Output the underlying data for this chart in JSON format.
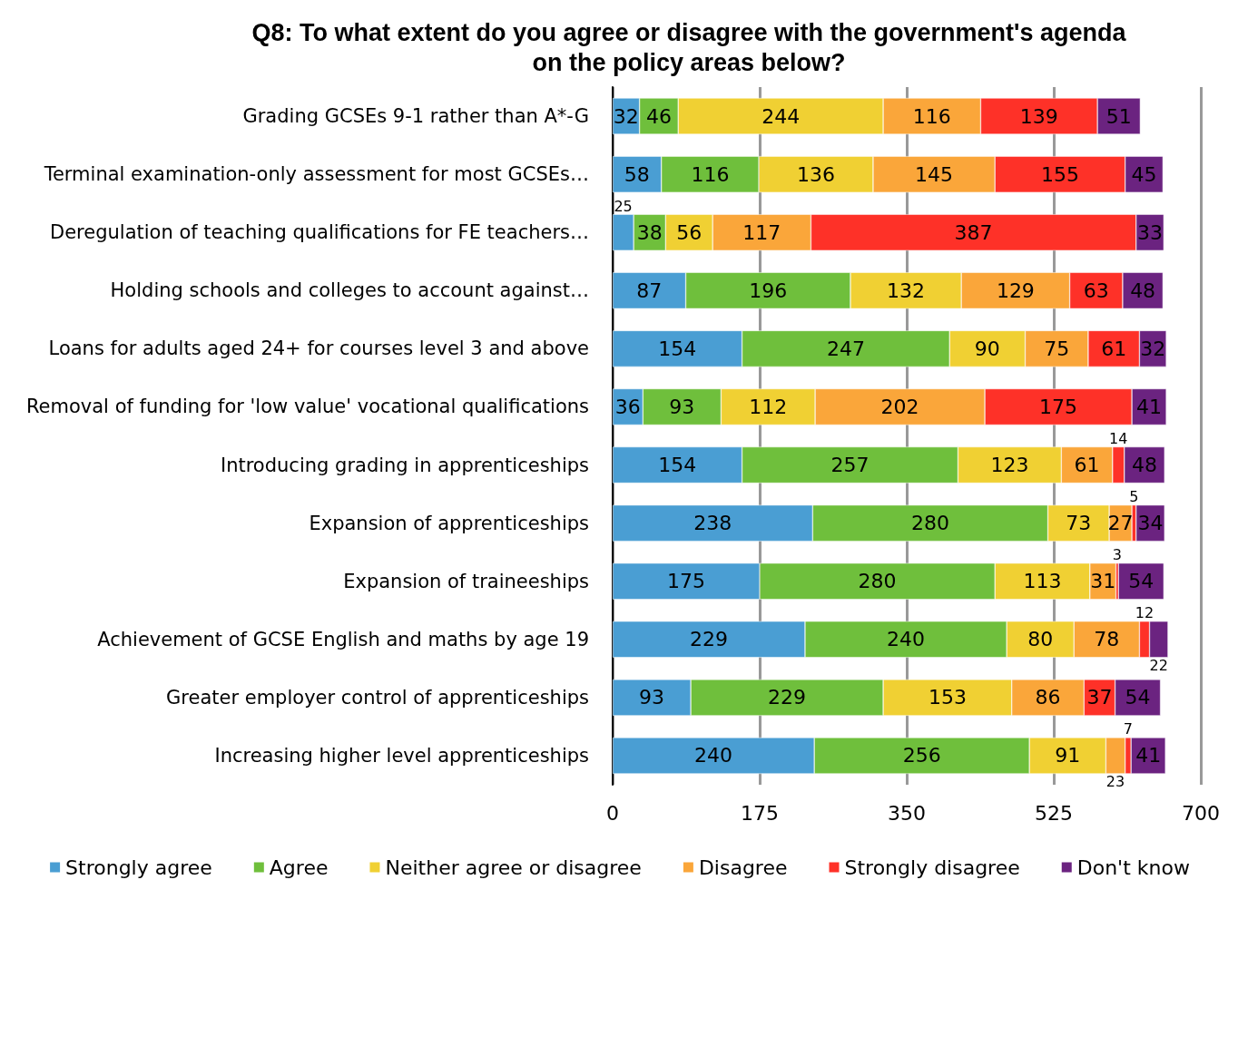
{
  "chart_data": {
    "type": "bar",
    "orientation": "horizontal",
    "stacked": true,
    "title": "Q8: To what extent do you agree or disagree with the government's agenda\non the policy areas below?",
    "categories": [
      "Grading GCSEs 9-1 rather than A*-G",
      "Terminal examination-only assessment for most GCSEs…",
      "Deregulation of teaching qualifications for FE teachers…",
      "Holding schools and colleges to account against…",
      "Loans for adults aged 24+ for courses level 3 and above",
      "Removal of funding for 'low value' vocational qualifications",
      "Introducing grading in apprenticeships",
      "Expansion of apprenticeships",
      "Expansion of traineeships",
      "Achievement of GCSE English and maths by age 19",
      "Greater employer control of apprenticeships",
      "Increasing higher level apprenticeships"
    ],
    "series": [
      {
        "name": "Strongly agree",
        "color": "#4a9ed3",
        "values": [
          32,
          58,
          25,
          87,
          154,
          36,
          154,
          238,
          175,
          229,
          93,
          240
        ]
      },
      {
        "name": "Agree",
        "color": "#6fbf3c",
        "values": [
          46,
          116,
          38,
          196,
          247,
          93,
          257,
          280,
          280,
          240,
          229,
          256
        ]
      },
      {
        "name": "Neither agree or disagree",
        "color": "#f0d033",
        "values": [
          244,
          136,
          56,
          132,
          90,
          112,
          123,
          73,
          113,
          80,
          153,
          91
        ]
      },
      {
        "name": "Disagree",
        "color": "#faa63a",
        "values": [
          116,
          145,
          117,
          129,
          75,
          202,
          61,
          27,
          31,
          78,
          86,
          23
        ]
      },
      {
        "name": "Strongly disagree",
        "color": "#fe3128",
        "values": [
          139,
          155,
          387,
          63,
          61,
          175,
          14,
          5,
          3,
          12,
          37,
          7
        ]
      },
      {
        "name": "Don't know",
        "color": "#6b2380",
        "values": [
          51,
          45,
          33,
          48,
          32,
          41,
          48,
          34,
          54,
          22,
          54,
          41
        ]
      }
    ],
    "xlim": [
      0,
      700
    ],
    "xticks": [
      0,
      175,
      350,
      525,
      700
    ],
    "grid": "x",
    "legend": "bottom",
    "data_labels": true
  }
}
